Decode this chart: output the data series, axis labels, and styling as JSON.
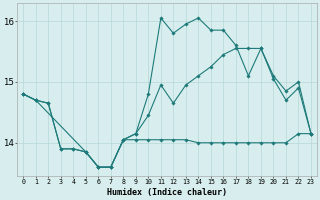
{
  "xlabel": "Humidex (Indice chaleur)",
  "x_values": [
    0,
    1,
    2,
    3,
    4,
    5,
    6,
    7,
    8,
    9,
    10,
    11,
    12,
    13,
    14,
    15,
    16,
    17,
    18,
    19,
    20,
    21,
    22,
    23
  ],
  "line_flat": [
    14.8,
    14.7,
    null,
    null,
    null,
    null,
    null,
    null,
    null,
    null,
    null,
    null,
    null,
    null,
    14.0,
    14.0,
    14.0,
    14.0,
    14.0,
    14.0,
    14.0,
    14.0,
    14.15,
    14.15
  ],
  "line_peak": [
    14.8,
    14.7,
    14.65,
    13.9,
    13.9,
    13.85,
    13.6,
    13.6,
    14.05,
    14.15,
    14.8,
    16.05,
    15.8,
    15.95,
    16.05,
    15.85,
    15.85,
    15.6,
    15.1,
    15.55,
    15.05,
    14.7,
    14.9,
    14.15
  ],
  "line_rise": [
    14.8,
    14.7,
    14.65,
    13.9,
    13.9,
    13.85,
    13.6,
    13.6,
    14.05,
    14.15,
    14.45,
    14.95,
    14.65,
    14.95,
    15.1,
    15.25,
    15.45,
    15.55,
    15.55,
    15.55,
    15.1,
    14.85,
    15.0,
    14.15
  ],
  "flat_x": [
    0,
    1,
    5,
    6,
    7,
    8,
    9,
    10,
    11,
    12,
    13,
    14,
    15,
    16,
    17,
    18,
    19,
    20,
    21,
    22,
    23
  ],
  "flat_y": [
    14.8,
    14.7,
    13.85,
    13.6,
    13.6,
    14.05,
    14.05,
    14.05,
    14.05,
    14.05,
    14.05,
    14.0,
    14.0,
    14.0,
    14.0,
    14.0,
    14.0,
    14.0,
    14.0,
    14.15,
    14.15
  ],
  "line_color": "#1e7a7a",
  "bg_color": "#d8eeee",
  "grid_color": "#b8d8d8",
  "ylim": [
    13.45,
    16.3
  ],
  "yticks": [
    14,
    15,
    16
  ],
  "xlim": [
    -0.5,
    23.5
  ],
  "figsize": [
    3.2,
    2.0
  ],
  "dpi": 100
}
